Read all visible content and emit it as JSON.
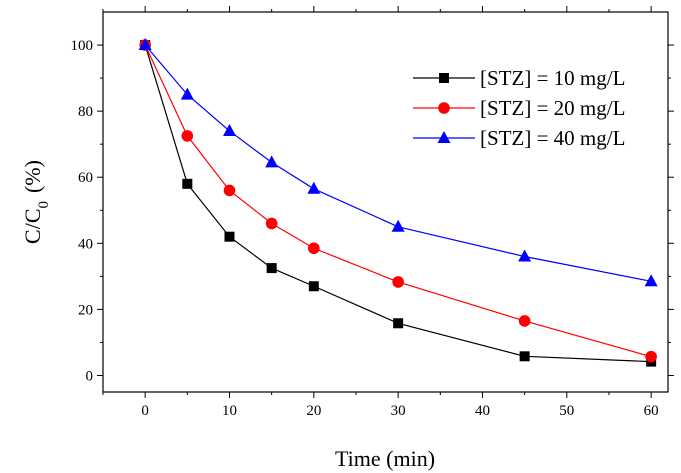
{
  "chart_data": {
    "type": "line",
    "xlabel": "Time (min)",
    "ylabel": {
      "main": "C/C",
      "sub": "0",
      "unit": "(%)"
    },
    "xlim": [
      -5,
      62
    ],
    "ylim": [
      -5,
      110
    ],
    "xticks": [
      0,
      10,
      20,
      30,
      40,
      50,
      60
    ],
    "yticks": [
      0,
      20,
      40,
      60,
      80,
      100
    ],
    "x_minor_ticks": [
      -5,
      5,
      15,
      25,
      35,
      45,
      55
    ],
    "y_minor_ticks": [
      10,
      30,
      50,
      70,
      90
    ],
    "grid": false,
    "legend_position": "top-right",
    "x": [
      0,
      5,
      10,
      15,
      20,
      30,
      45,
      60
    ],
    "series": [
      {
        "name": "[STZ] = 10 mg/L",
        "color": "#000000",
        "marker": "square",
        "values": [
          100,
          58,
          42,
          32.5,
          27,
          15.8,
          5.8,
          4.2
        ]
      },
      {
        "name": "[STZ] = 20 mg/L",
        "color": "#ff0000",
        "marker": "circle",
        "values": [
          100,
          72.5,
          56,
          46,
          38.5,
          28.3,
          16.5,
          5.7
        ]
      },
      {
        "name": "[STZ] = 40 mg/L",
        "color": "#0000ff",
        "marker": "triangle",
        "values": [
          100,
          85,
          74,
          64.5,
          56.5,
          45,
          36,
          28.5
        ]
      }
    ]
  }
}
